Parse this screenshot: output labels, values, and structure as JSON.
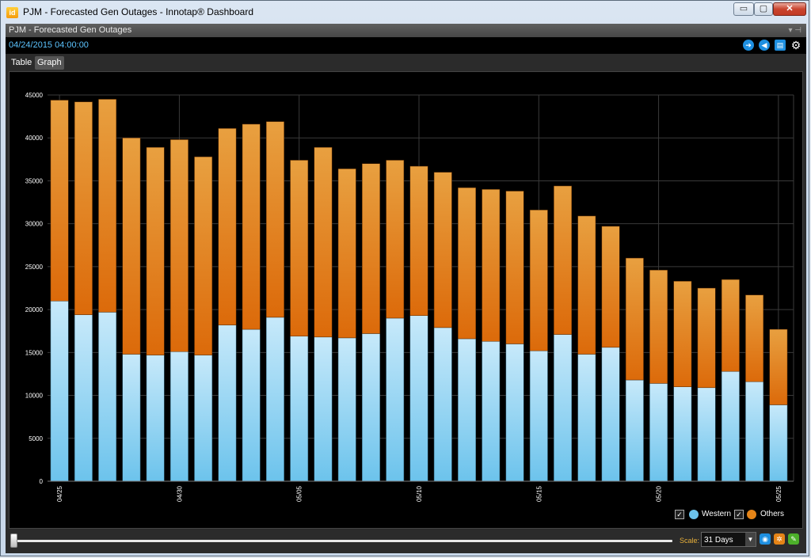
{
  "window": {
    "title": "PJM - Forecasted Gen Outages - Innotap® Dashboard",
    "app_icon": "innotap-logo",
    "controls": {
      "minimize": "▭",
      "maximize": "▢",
      "close": "✕"
    }
  },
  "panel": {
    "title": "PJM - Forecasted Gen Outages",
    "pin_glyph": "▾ ⊣",
    "timestamp": "04/24/2015 04:00:00",
    "toolbar_icons": [
      "arrow-right-icon",
      "speaker-icon",
      "export-icon",
      "gear-icon"
    ]
  },
  "tabs": [
    {
      "label": "Table",
      "active": false
    },
    {
      "label": "Graph",
      "active": true
    }
  ],
  "legend": {
    "items": [
      {
        "label": "Western",
        "color": "#6cc3ec",
        "checked": true
      },
      {
        "label": "Others",
        "color": "#e58417",
        "checked": true
      }
    ]
  },
  "bottombar": {
    "scale_label": "Scale:",
    "scale_value": "31 Days",
    "slider_position": 0,
    "icons": [
      "view-icon",
      "config-icon",
      "edit-icon"
    ]
  },
  "chart_data": {
    "type": "bar",
    "stacked": true,
    "ylim": [
      0,
      45000
    ],
    "yticks": [
      0,
      5000,
      10000,
      15000,
      20000,
      25000,
      30000,
      35000,
      40000,
      45000
    ],
    "xtick_labels": [
      {
        "index": 0,
        "label": "04/25"
      },
      {
        "index": 5,
        "label": "04/30"
      },
      {
        "index": 10,
        "label": "05/05"
      },
      {
        "index": 15,
        "label": "05/10"
      },
      {
        "index": 20,
        "label": "05/15"
      },
      {
        "index": 25,
        "label": "05/20"
      },
      {
        "index": 30,
        "label": "05/25"
      }
    ],
    "grid": true,
    "legend_position": "bottom-right",
    "series": [
      {
        "name": "Western",
        "color": "#6cc3ec",
        "values": [
          21000,
          19400,
          19700,
          14800,
          14700,
          15100,
          14700,
          18200,
          17700,
          19100,
          16900,
          16800,
          16700,
          17200,
          19000,
          19300,
          17900,
          16600,
          16300,
          16000,
          15200,
          17100,
          14800,
          15600,
          11800,
          11400,
          11000,
          10900,
          12800,
          11600,
          8900
        ]
      },
      {
        "name": "Others",
        "color": "#e58417",
        "values": [
          23400,
          24800,
          24800,
          25200,
          24200,
          24700,
          23100,
          22900,
          23900,
          22800,
          20500,
          22100,
          19700,
          19800,
          18400,
          17400,
          18100,
          17600,
          17700,
          17800,
          16400,
          17300,
          16100,
          14100,
          14200,
          13200,
          12300,
          11600,
          10700,
          10100,
          8800
        ]
      }
    ]
  }
}
